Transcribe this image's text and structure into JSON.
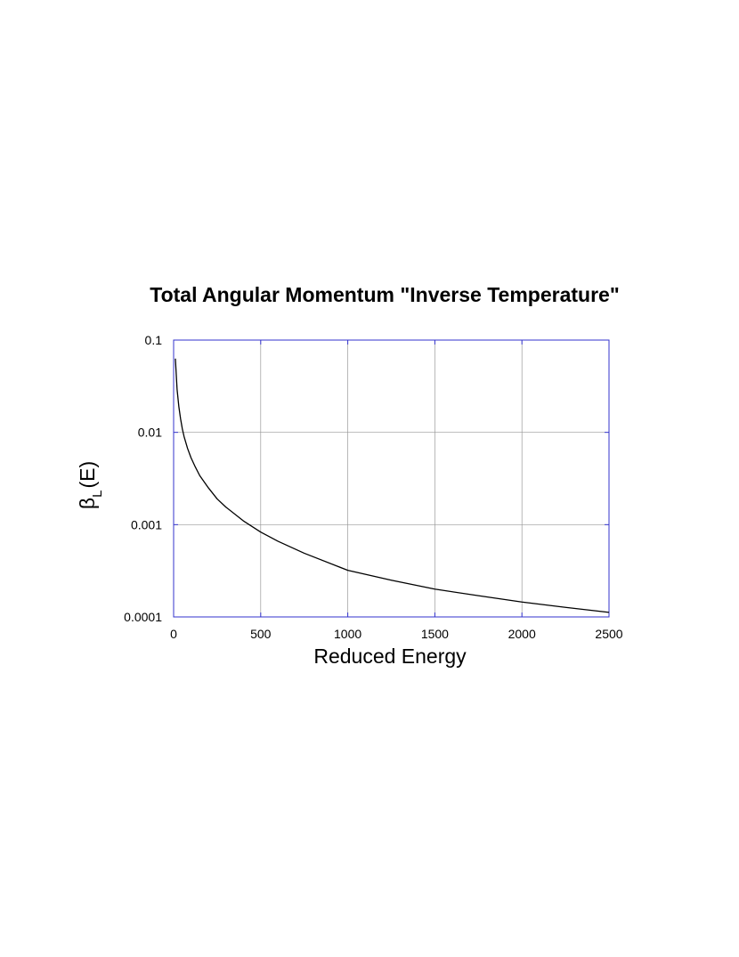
{
  "chart_data": {
    "type": "line",
    "title": "Total Angular Momentum \"Inverse Temperature\"",
    "xlabel": "Reduced Energy",
    "ylabel": {
      "symbol": "β",
      "subscript": "L",
      "suffix": "(E)"
    },
    "y_scale": "log",
    "xlim": [
      0,
      2500
    ],
    "ylim": [
      0.0001,
      0.1
    ],
    "x_ticks": [
      0,
      500,
      1000,
      1500,
      2000,
      2500
    ],
    "x_tick_labels": [
      "0",
      "500",
      "1000",
      "1500",
      "2000",
      "2500"
    ],
    "y_ticks": [
      0.1,
      0.01,
      0.001,
      0.0001
    ],
    "y_tick_labels": [
      "0.1",
      "0.01",
      "0.001",
      "0.0001"
    ],
    "grid": true,
    "frame_color": "#3333cc",
    "grid_color": "#999999",
    "line_color": "#000000",
    "series": [
      {
        "x": [
          10,
          20,
          30,
          40,
          50,
          60,
          80,
          100,
          125,
          150,
          200,
          250,
          300,
          400,
          500,
          600,
          750,
          1000,
          1250,
          1500,
          1750,
          2000,
          2250,
          2500
        ],
        "y": [
          0.063,
          0.029,
          0.019,
          0.014,
          0.0109,
          0.009,
          0.0067,
          0.0053,
          0.0042,
          0.0034,
          0.0025,
          0.0019,
          0.00155,
          0.0011,
          0.00083,
          0.00066,
          0.00049,
          0.00032,
          0.00025,
          0.0002,
          0.00017,
          0.000145,
          0.000127,
          0.000112
        ]
      }
    ]
  }
}
